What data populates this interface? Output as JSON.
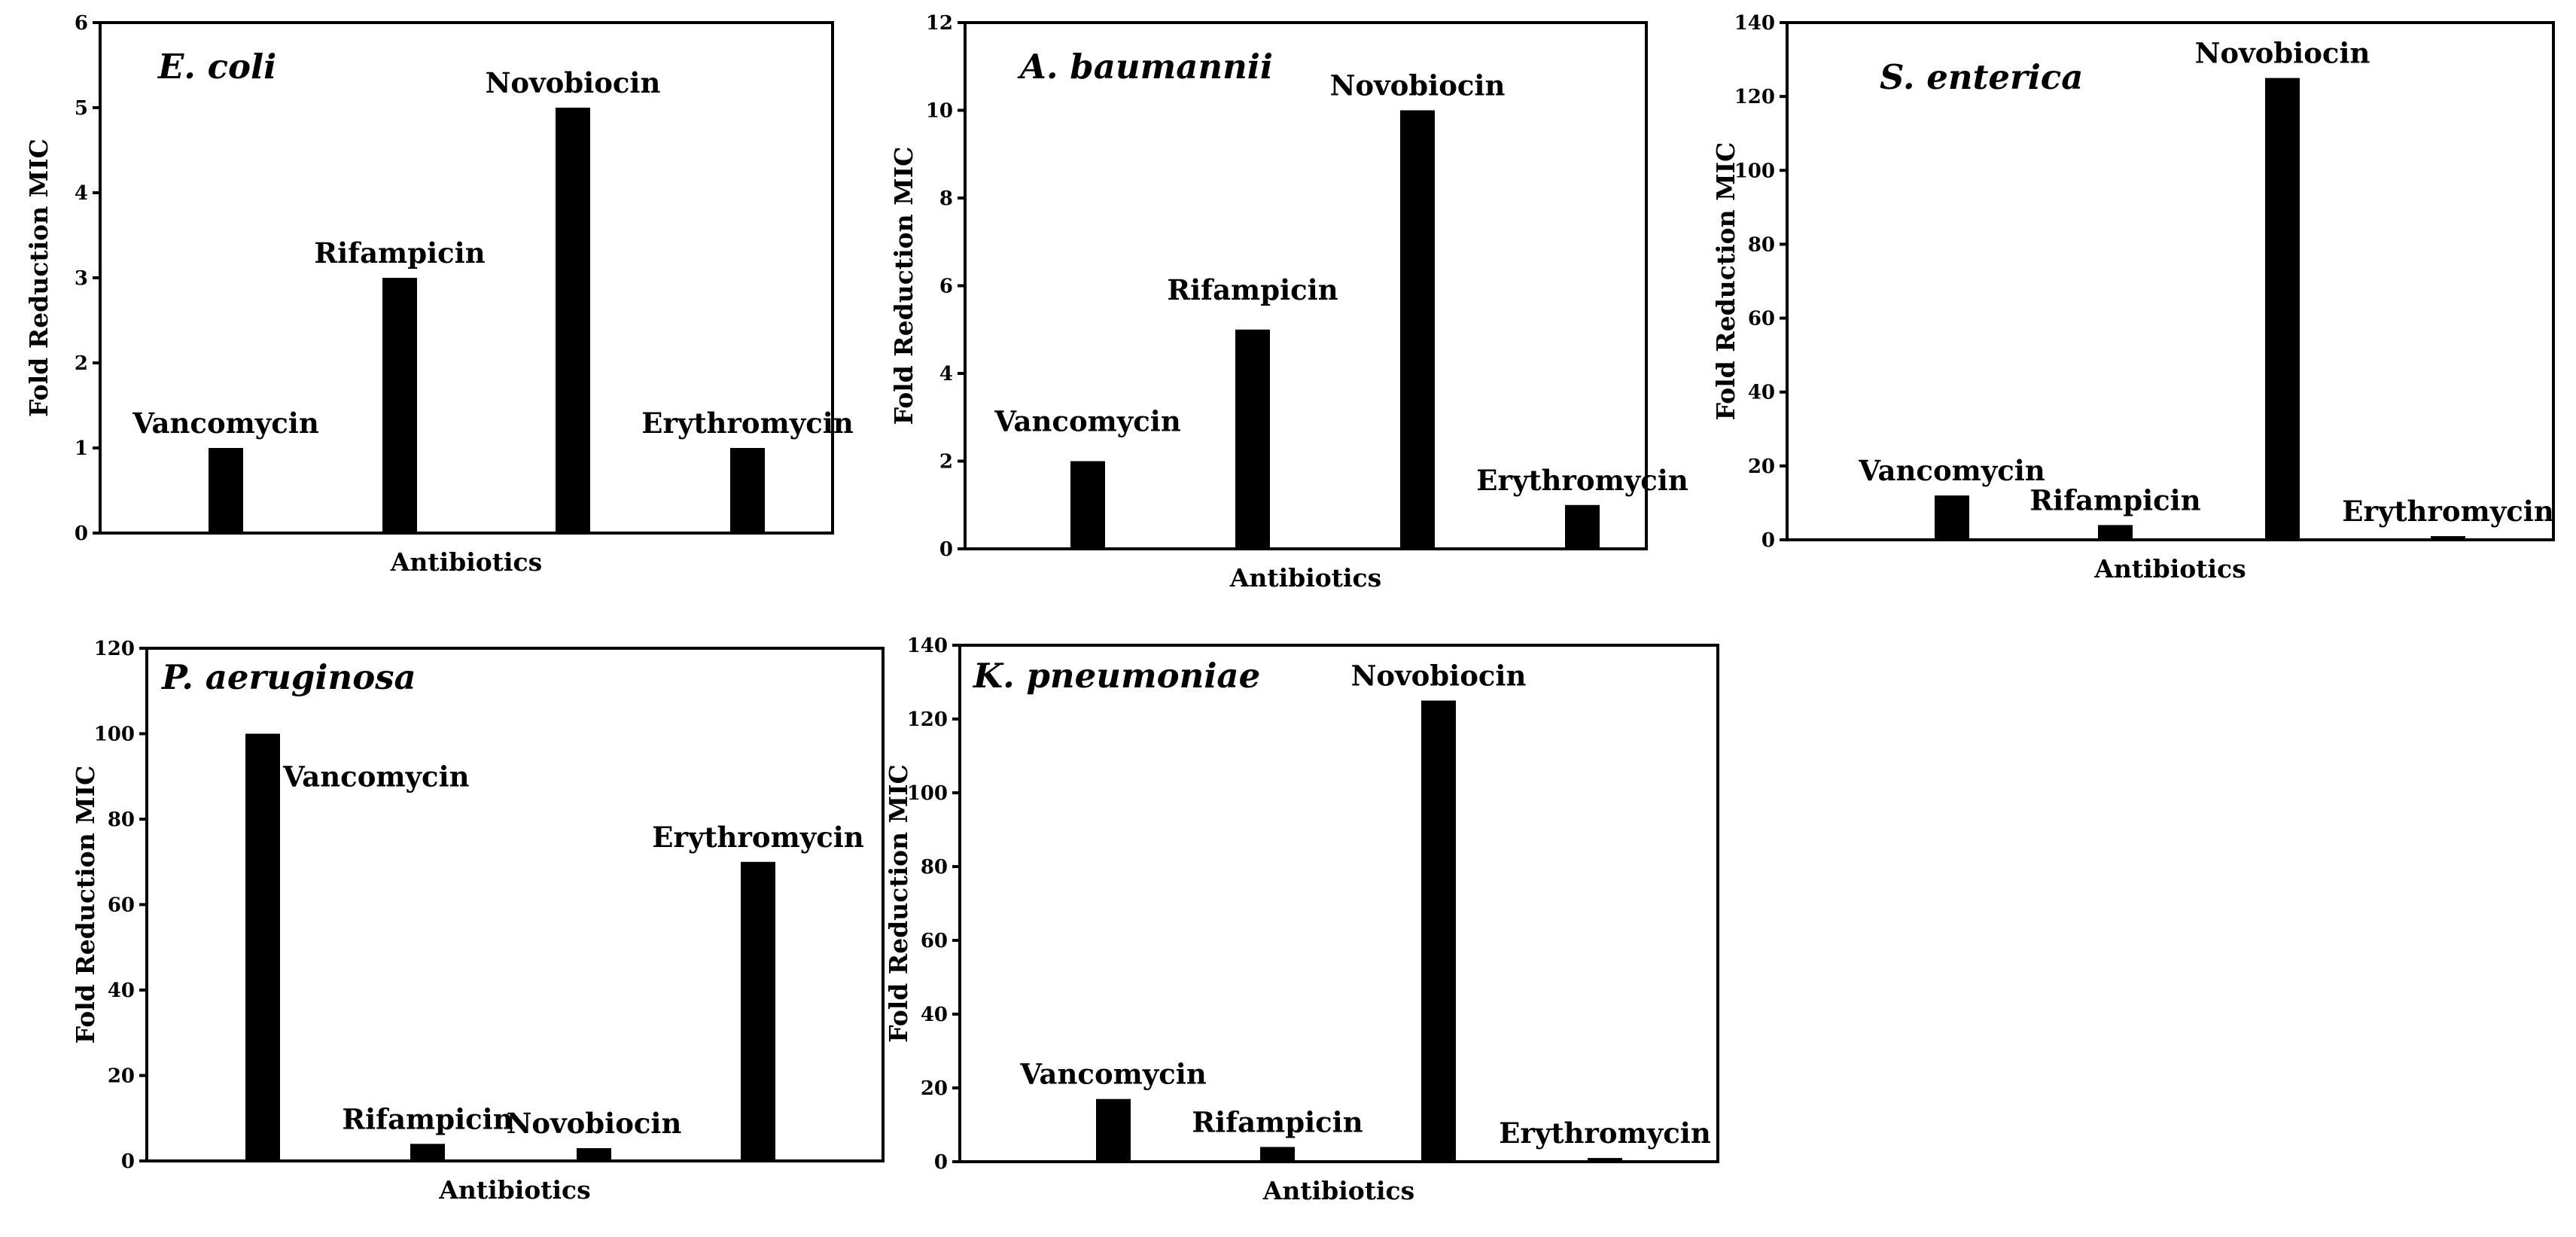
{
  "chart_data": [
    {
      "type": "bar",
      "title": "E. coli",
      "xlabel": "Antibiotics",
      "ylabel": "Fold Reduction MIC",
      "ylim": [
        0,
        6
      ],
      "yticks": [
        0,
        1,
        2,
        3,
        4,
        5,
        6
      ],
      "categories": [
        "Vancomycin",
        "Rifampicin",
        "Novobiocin",
        "Erythromycin"
      ],
      "values": [
        1,
        3,
        5,
        1
      ]
    },
    {
      "type": "bar",
      "title": "A. baumannii",
      "xlabel": "Antibiotics",
      "ylabel": "Fold Reduction MIC",
      "ylim": [
        0,
        12
      ],
      "yticks": [
        0,
        2,
        4,
        6,
        8,
        10,
        12
      ],
      "categories": [
        "Vancomycin",
        "Rifampicin",
        "Novobiocin",
        "Erythromycin"
      ],
      "values": [
        2,
        5,
        10,
        1
      ]
    },
    {
      "type": "bar",
      "title": "S. enterica",
      "xlabel": "Antibiotics",
      "ylabel": "Fold Reduction MIC",
      "ylim": [
        0,
        140
      ],
      "yticks": [
        0,
        20,
        40,
        60,
        80,
        100,
        120,
        140
      ],
      "categories": [
        "Vancomycin",
        "Rifampicin",
        "Novobiocin",
        "Erythromycin"
      ],
      "values": [
        12,
        4,
        125,
        1
      ]
    },
    {
      "type": "bar",
      "title": "P. aeruginosa",
      "xlabel": "Antibiotics",
      "ylabel": "Fold Reduction MIC",
      "ylim": [
        0,
        120
      ],
      "yticks": [
        0,
        20,
        40,
        60,
        80,
        100,
        120
      ],
      "categories": [
        "Vancomycin",
        "Rifampicin",
        "Novobiocin",
        "Erythromycin"
      ],
      "values": [
        100,
        4,
        3,
        70
      ]
    },
    {
      "type": "bar",
      "title": "K. pneumoniae",
      "xlabel": "Antibiotics",
      "ylabel": "Fold Reduction MIC",
      "ylim": [
        0,
        140
      ],
      "yticks": [
        0,
        20,
        40,
        60,
        80,
        100,
        120,
        140
      ],
      "categories": [
        "Vancomycin",
        "Rifampicin",
        "Novobiocin",
        "Erythromycin"
      ],
      "values": [
        17,
        4,
        125,
        1
      ]
    }
  ]
}
